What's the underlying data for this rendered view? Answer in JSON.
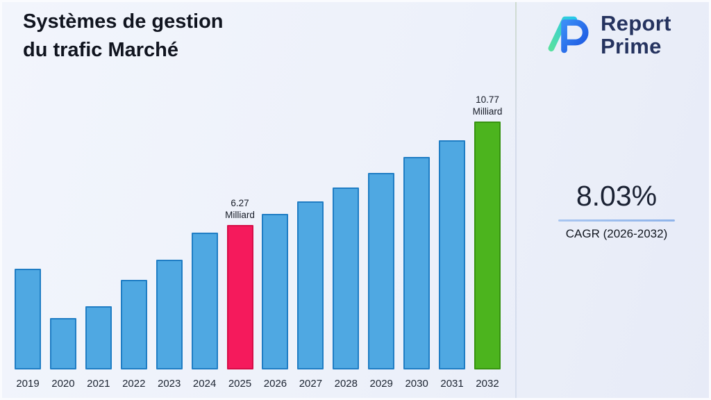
{
  "header": {
    "title_line1": "Systèmes de gestion",
    "title_line2": "du trafic Marché"
  },
  "logo": {
    "line1": "Report",
    "line2": "Prime"
  },
  "stats": {
    "cagr_value": "8.03%",
    "cagr_label": "CAGR (2026-2032)"
  },
  "chart_data": {
    "type": "bar",
    "title": "Systèmes de gestion du trafic Marché",
    "categories": [
      "2019",
      "2020",
      "2021",
      "2022",
      "2023",
      "2024",
      "2025",
      "2026",
      "2027",
      "2028",
      "2029",
      "2030",
      "2031",
      "2032"
    ],
    "values": [
      4.37,
      2.23,
      2.76,
      3.9,
      4.76,
      5.94,
      6.27,
      6.77,
      7.31,
      7.9,
      8.53,
      9.22,
      9.96,
      10.77
    ],
    "unit": "Milliard",
    "ylim": [
      0,
      11.5
    ],
    "grid": false,
    "legend": "none",
    "bar_color": "#4fa8e2",
    "bar_border": "#1f7dc4",
    "highlights": [
      {
        "index": 6,
        "category": "2025",
        "value": "6.27",
        "unit": "Milliard",
        "color": "#f51a5c",
        "border": "#d60d47"
      },
      {
        "index": 13,
        "category": "2032",
        "value": "10.77",
        "unit": "Milliard",
        "color": "#4cb41e",
        "border": "#379310"
      }
    ]
  }
}
